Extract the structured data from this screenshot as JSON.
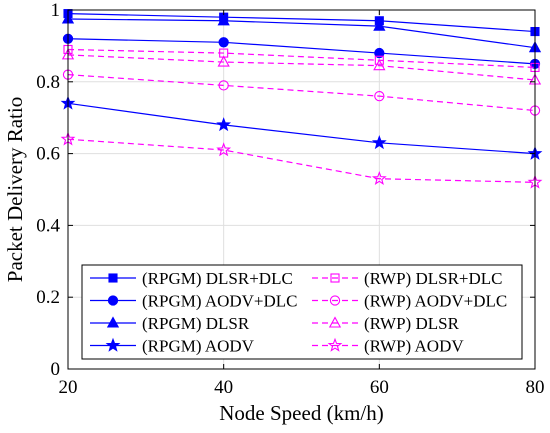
{
  "chart_data": {
    "type": "line",
    "xlabel": "Node Speed (km/h)",
    "ylabel": "Packet Delivery Ratio",
    "xlim": [
      20,
      80
    ],
    "ylim": [
      0,
      1
    ],
    "x": [
      20,
      40,
      60,
      80
    ],
    "x_ticks": [
      "20",
      "40",
      "60",
      "80"
    ],
    "y_ticks": [
      "0",
      "0.2",
      "0.4",
      "0.6",
      "0.8",
      "1"
    ],
    "grid": true,
    "legend_placement": "bottom-center, two columns",
    "series": [
      {
        "name": "(RPGM) DLSR+DLC",
        "values": [
          0.99,
          0.98,
          0.97,
          0.94
        ],
        "color": "#0000ff",
        "marker": "square",
        "filled": true,
        "dashed": false
      },
      {
        "name": "(RPGM) AODV+DLC",
        "values": [
          0.92,
          0.91,
          0.88,
          0.85
        ],
        "color": "#0000ff",
        "marker": "circle",
        "filled": true,
        "dashed": false
      },
      {
        "name": "(RPGM) DLSR",
        "values": [
          0.975,
          0.97,
          0.955,
          0.895
        ],
        "color": "#0000ff",
        "marker": "triangle",
        "filled": true,
        "dashed": false
      },
      {
        "name": "(RPGM) AODV",
        "values": [
          0.74,
          0.68,
          0.63,
          0.6
        ],
        "color": "#0000ff",
        "marker": "star",
        "filled": true,
        "dashed": false
      },
      {
        "name": "(RWP) DLSR+DLC",
        "values": [
          0.89,
          0.88,
          0.86,
          0.84
        ],
        "color": "#ff00ff",
        "marker": "square",
        "filled": false,
        "dashed": true
      },
      {
        "name": "(RWP) AODV+DLC",
        "values": [
          0.82,
          0.79,
          0.76,
          0.72
        ],
        "color": "#ff00ff",
        "marker": "circle",
        "filled": false,
        "dashed": true
      },
      {
        "name": "(RWP) DLSR",
        "values": [
          0.875,
          0.855,
          0.845,
          0.805
        ],
        "color": "#ff00ff",
        "marker": "triangle",
        "filled": false,
        "dashed": true
      },
      {
        "name": "(RWP) AODV",
        "values": [
          0.64,
          0.61,
          0.53,
          0.52
        ],
        "color": "#ff00ff",
        "marker": "star",
        "filled": false,
        "dashed": true
      }
    ]
  }
}
